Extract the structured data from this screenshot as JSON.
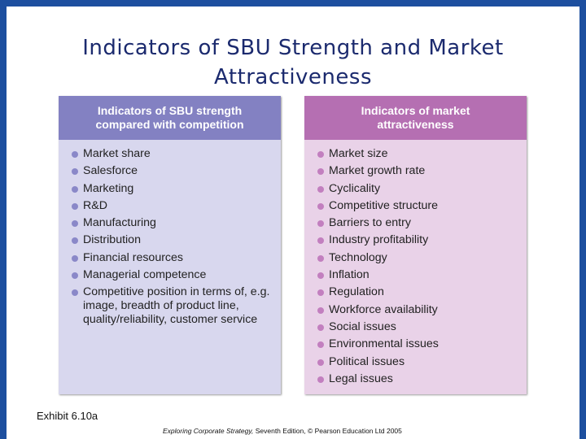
{
  "title": [
    "Indicators of SBU Strength and Market",
    "Attractiveness"
  ],
  "left_panel": {
    "header": [
      "Indicators of SBU strength",
      "compared with competition"
    ],
    "items": [
      "Market share",
      "Salesforce",
      "Marketing",
      "R&D",
      "Manufacturing",
      "Distribution",
      "Financial resources",
      "Managerial competence",
      "Competitive position in terms of, e.g. image, breadth of product line, quality/reliability, customer service"
    ]
  },
  "right_panel": {
    "header": [
      "Indicators of market",
      "attractiveness"
    ],
    "items": [
      "Market size",
      "Market growth rate",
      "Cyclicality",
      "Competitive structure",
      "Barriers to entry",
      "Industry profitability",
      "Technology",
      "Inflation",
      "Regulation",
      "Workforce availability",
      "Social issues",
      "Environmental issues",
      "Political issues",
      "Legal issues"
    ]
  },
  "exhibit": "Exhibit 6.10a",
  "footer": {
    "italic": "Exploring Corporate Strategy,",
    "text": "Seventh Edition, © Pearson Education Ltd 2005"
  }
}
